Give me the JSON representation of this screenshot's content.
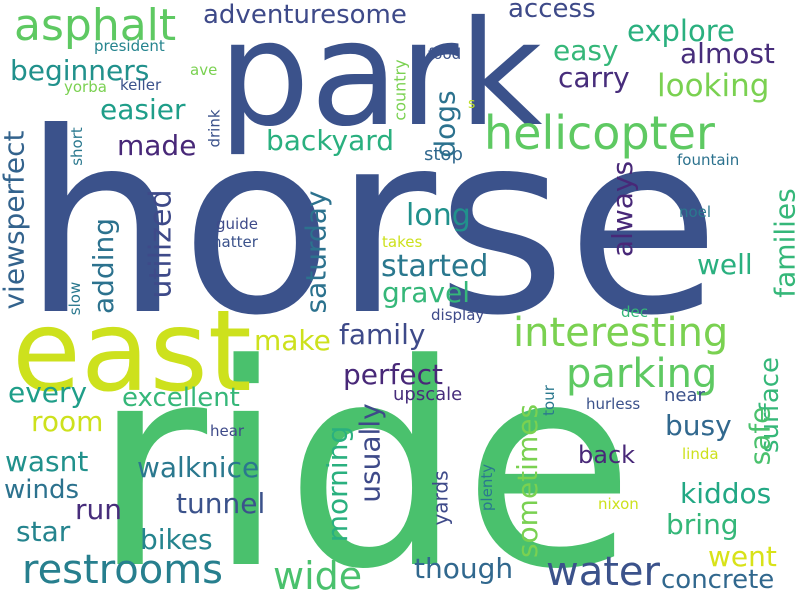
{
  "words": [
    {
      "text": "horse",
      "color": "#3b528b"
    },
    {
      "text": "ride",
      "color": "#4ac16d"
    },
    {
      "text": "park",
      "color": "#3b528b"
    },
    {
      "text": "east",
      "color": "#cde11d"
    },
    {
      "text": "helicopter",
      "color": "#5ec962"
    },
    {
      "text": "asphalt",
      "color": "#5ec962"
    },
    {
      "text": "restrooms",
      "color": "#277f8e"
    },
    {
      "text": "water",
      "color": "#3b528b"
    },
    {
      "text": "wide",
      "color": "#4ac16d"
    },
    {
      "text": "interesting",
      "color": "#7ad151"
    },
    {
      "text": "parking",
      "color": "#5ec962"
    },
    {
      "text": "adventuresome",
      "color": "#3e4a89"
    },
    {
      "text": "access",
      "color": "#3e4a89"
    },
    {
      "text": "explore",
      "color": "#2ab07f"
    },
    {
      "text": "easy",
      "color": "#35b779"
    },
    {
      "text": "almost",
      "color": "#472d7b"
    },
    {
      "text": "carry",
      "color": "#472d7b"
    },
    {
      "text": "looking",
      "color": "#7ad151"
    },
    {
      "text": "beginners",
      "color": "#21918c"
    },
    {
      "text": "easier",
      "color": "#1f9e89"
    },
    {
      "text": "backyard",
      "color": "#2ab07f"
    },
    {
      "text": "made",
      "color": "#482878"
    },
    {
      "text": "dogs",
      "color": "#2c728e"
    },
    {
      "text": "stop",
      "color": "#31688e"
    },
    {
      "text": "viewsperfect",
      "color": "#33638d"
    },
    {
      "text": "adding",
      "color": "#2c728e"
    },
    {
      "text": "utilized",
      "color": "#3e4a89"
    },
    {
      "text": "saturday",
      "color": "#2c728e"
    },
    {
      "text": "long",
      "color": "#21918c"
    },
    {
      "text": "always",
      "color": "#482878"
    },
    {
      "text": "families",
      "color": "#35b779"
    },
    {
      "text": "well",
      "color": "#2ab07f"
    },
    {
      "text": "started",
      "color": "#2a788e"
    },
    {
      "text": "gravel",
      "color": "#35b779"
    },
    {
      "text": "family",
      "color": "#3e4a89"
    },
    {
      "text": "make",
      "color": "#cde11d"
    },
    {
      "text": "perfect",
      "color": "#482878"
    },
    {
      "text": "every",
      "color": "#1f9e89"
    },
    {
      "text": "excellent",
      "color": "#35b779"
    },
    {
      "text": "room",
      "color": "#cde11d"
    },
    {
      "text": "usually",
      "color": "#3e4a89"
    },
    {
      "text": "upscale",
      "color": "#472d7b"
    },
    {
      "text": "near",
      "color": "#3b528b"
    },
    {
      "text": "surface",
      "color": "#35b779"
    },
    {
      "text": "safe",
      "color": "#4ac16d"
    },
    {
      "text": "busy",
      "color": "#31688e"
    },
    {
      "text": "wasnt",
      "color": "#21918c"
    },
    {
      "text": "walknice",
      "color": "#2a788e"
    },
    {
      "text": "winds",
      "color": "#2c728e"
    },
    {
      "text": "tunnel",
      "color": "#3b528b"
    },
    {
      "text": "morning",
      "color": "#2ab07f"
    },
    {
      "text": "run",
      "color": "#472d7b"
    },
    {
      "text": "star",
      "color": "#25848e"
    },
    {
      "text": "bikes",
      "color": "#25848e"
    },
    {
      "text": "sometimes",
      "color": "#7ad151"
    },
    {
      "text": "yards",
      "color": "#3e4a89"
    },
    {
      "text": "though",
      "color": "#31688e"
    },
    {
      "text": "back",
      "color": "#482878"
    },
    {
      "text": "kiddos",
      "color": "#22a884"
    },
    {
      "text": "bring",
      "color": "#35b779"
    },
    {
      "text": "went",
      "color": "#d8e219"
    },
    {
      "text": "concrete",
      "color": "#31688e"
    },
    {
      "text": "president",
      "color": "#25848e"
    },
    {
      "text": "ave",
      "color": "#7ad151"
    },
    {
      "text": "keller",
      "color": "#3b528b"
    },
    {
      "text": "yorba",
      "color": "#7ad151"
    },
    {
      "text": "food",
      "color": "#3b528b"
    },
    {
      "text": "country",
      "color": "#7ad151"
    },
    {
      "text": "drink",
      "color": "#3b528b"
    },
    {
      "text": "short",
      "color": "#2a788e"
    },
    {
      "text": "s",
      "color": "#bddf26"
    },
    {
      "text": "fountain",
      "color": "#2c728e"
    },
    {
      "text": "noel",
      "color": "#2a788e"
    },
    {
      "text": "guide",
      "color": "#3e4a89"
    },
    {
      "text": "natter",
      "color": "#3b528b"
    },
    {
      "text": "takes",
      "color": "#cde11d"
    },
    {
      "text": "slow",
      "color": "#2a788e"
    },
    {
      "text": "display",
      "color": "#3e4a89"
    },
    {
      "text": "dec",
      "color": "#35b779"
    },
    {
      "text": "tour",
      "color": "#2a788e"
    },
    {
      "text": "hurless",
      "color": "#3b528b"
    },
    {
      "text": "hear",
      "color": "#3e4a89"
    },
    {
      "text": "linda",
      "color": "#cde11d"
    },
    {
      "text": "plenty",
      "color": "#2a788e"
    },
    {
      "text": "nixon",
      "color": "#cde11d"
    }
  ]
}
